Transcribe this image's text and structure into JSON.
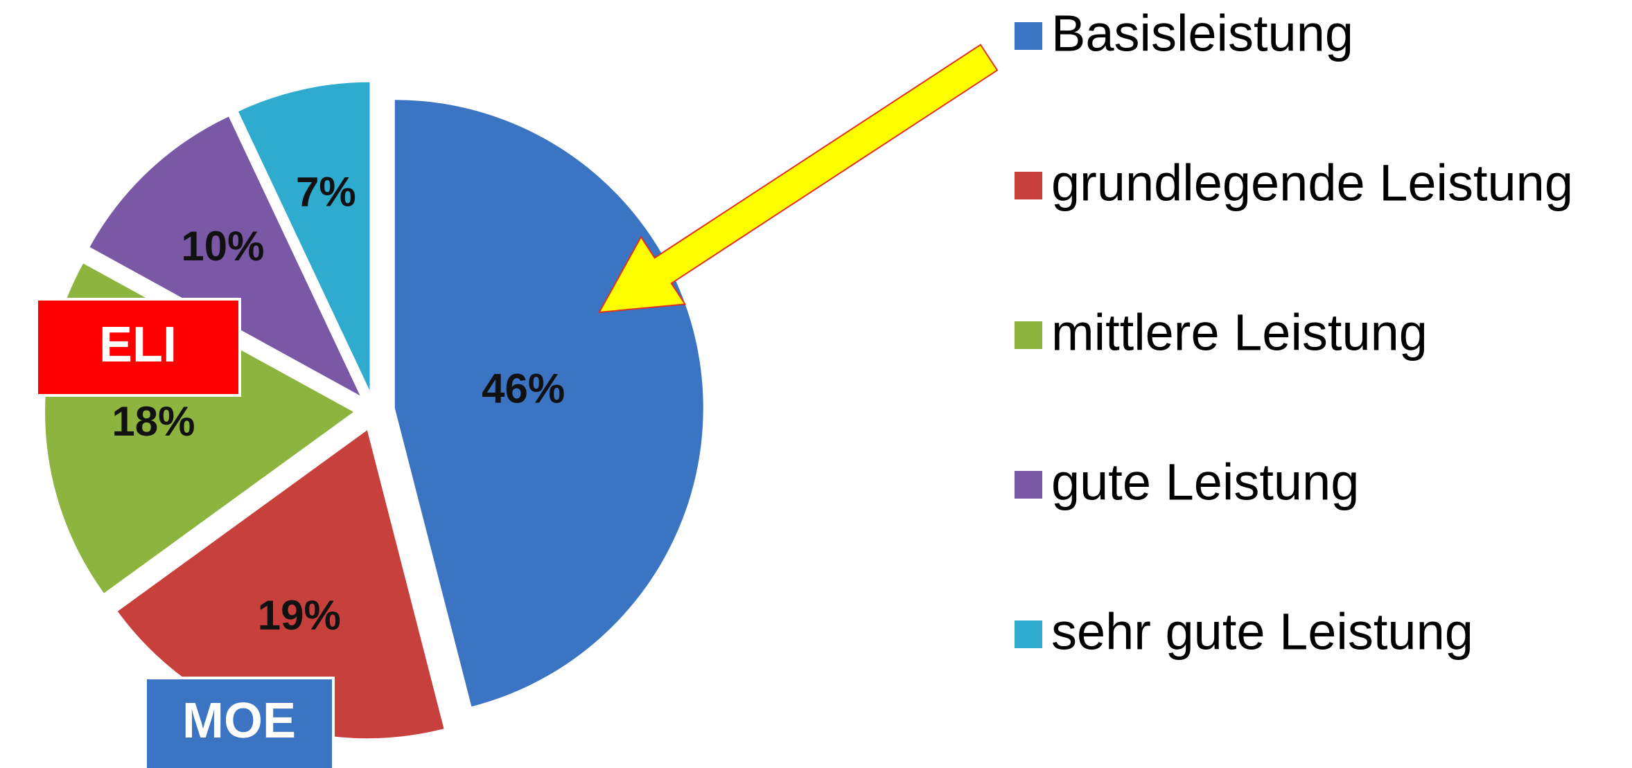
{
  "chart_data": {
    "type": "pie",
    "categories": [
      "Basisleistung",
      "grundlegende Leistung",
      "mittlere Leistung",
      "gute Leistung",
      "sehr gute Leistung"
    ],
    "values": [
      46,
      19,
      18,
      10,
      7
    ],
    "value_labels": [
      "46%",
      "19%",
      "18%",
      "10%",
      "7%"
    ],
    "colors": [
      "#3a74c2",
      "#c8403c",
      "#8cb43f",
      "#7a58a5",
      "#2fabcf"
    ],
    "legend": "right",
    "annotations": [
      {
        "text": "ELI",
        "color": "#ff0000"
      },
      {
        "text": "MOE",
        "color": "#3a74c2"
      }
    ]
  }
}
